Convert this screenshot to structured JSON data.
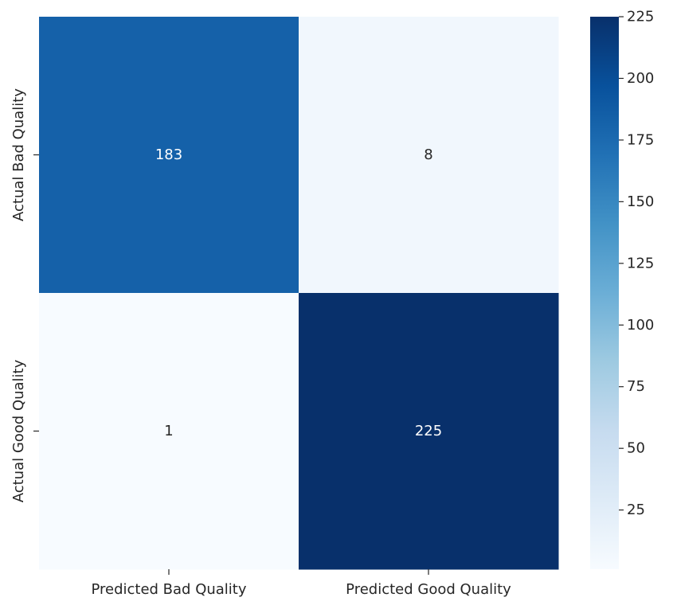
{
  "chart_data": {
    "type": "heatmap",
    "title": "",
    "xlabel": "",
    "ylabel": "",
    "x_categories": [
      "Predicted Bad Quality",
      "Predicted Good Quality"
    ],
    "y_categories": [
      "Actual Bad Quality",
      "Actual Good Quality"
    ],
    "values": [
      [
        183,
        8
      ],
      [
        1,
        225
      ]
    ],
    "colormap": "Blues",
    "value_range": [
      1,
      225
    ],
    "colorbar": {
      "ticks": [
        25,
        50,
        75,
        100,
        125,
        150,
        175,
        200,
        225
      ]
    },
    "grid": false,
    "colors": {
      "low": "#f7fbff",
      "high": "#08306b",
      "text_dark": "#262626",
      "text_light": "#ffffff"
    }
  }
}
